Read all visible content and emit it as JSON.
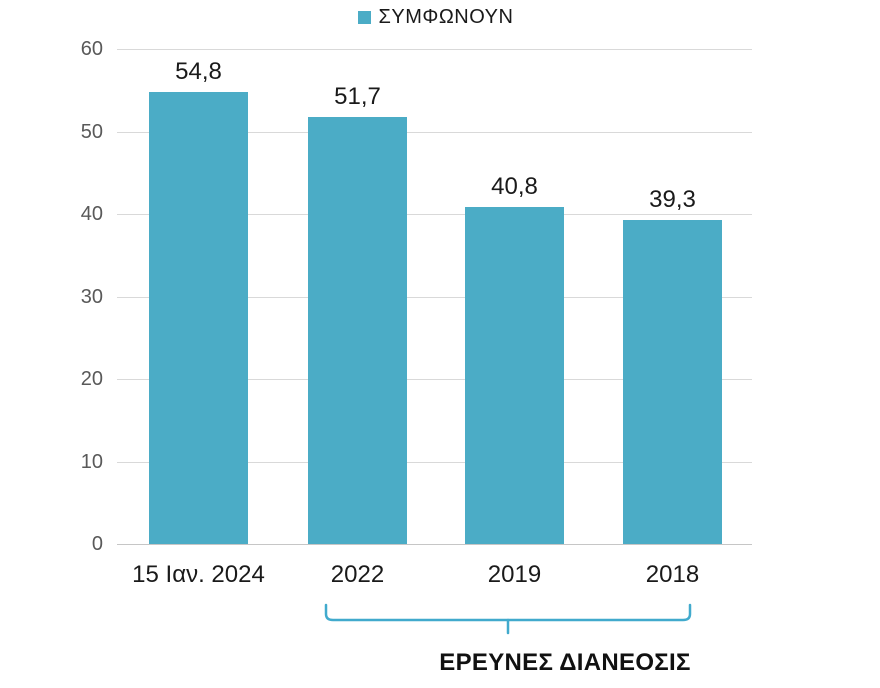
{
  "legend": {
    "label": "ΣΥΜΦΩΝΟΥΝ"
  },
  "colors": {
    "bar": "#4BACC6",
    "bracket": "#41AACD",
    "gridline": "#D9D9D9",
    "axis_text": "#595959",
    "label_text": "#1A1A1A"
  },
  "chart_data": {
    "type": "bar",
    "title": "",
    "series": [
      {
        "name": "ΣΥΜΦΩΝΟΥΝ",
        "values": [
          54.8,
          51.7,
          40.8,
          39.3
        ]
      }
    ],
    "categories": [
      "15 Ιαν. 2024",
      "2022",
      "2019",
      "2018"
    ],
    "value_labels": [
      "54,8",
      "51,7",
      "40,8",
      "39,3"
    ],
    "xlabel": "",
    "ylabel": "",
    "ylim": [
      0,
      60
    ],
    "yticks": [
      0,
      10,
      20,
      30,
      40,
      50,
      60
    ],
    "ytick_labels": [
      "0",
      "10",
      "20",
      "30",
      "40",
      "50",
      "60"
    ],
    "grid": true,
    "legend_position": "top-center",
    "bar_color": "#4BACC6",
    "annotation": {
      "label": "ΕΡΕΥΝΕΣ ΔΙΑΝΕΟΣΙΣ",
      "spans_categories": [
        "2022",
        "2019",
        "2018"
      ]
    }
  }
}
